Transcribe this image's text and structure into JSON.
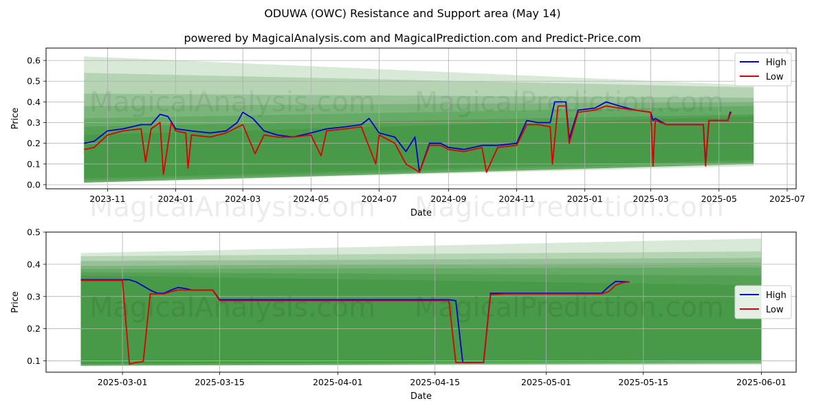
{
  "header": {
    "title": "ODUWA (OWC) Resistance and Support area (May 14)",
    "subtitle": "powered by MagicalAnalysis.com and MagicalPrediction.com and Predict-Price.com"
  },
  "watermarks": [
    "MagicalAnalysis.com",
    "MagicalPrediction.com"
  ],
  "colors": {
    "high": "#0000cc",
    "low": "#dd0000",
    "band": "#2e8b2e",
    "grid": "#b0b0b0"
  },
  "chart_data": [
    {
      "type": "line",
      "xlabel": "Date",
      "ylabel": "Price",
      "ylim": [
        -0.02,
        0.66
      ],
      "xlim": [
        "2023-09-07",
        "2025-07-09"
      ],
      "yticks": [
        0.0,
        0.1,
        0.2,
        0.3,
        0.4,
        0.5,
        0.6
      ],
      "ytick_labels": [
        "0.0",
        "0.1",
        "0.2",
        "0.3",
        "0.4",
        "0.5",
        "0.6"
      ],
      "xticks": [
        "2023-11-01",
        "2024-01-01",
        "2024-03-01",
        "2024-05-01",
        "2024-07-01",
        "2024-09-01",
        "2024-11-01",
        "2025-01-01",
        "2025-03-01",
        "2025-05-01",
        "2025-07-01"
      ],
      "xtick_labels": [
        "2023-11",
        "2024-01",
        "2024-03",
        "2024-05",
        "2024-07",
        "2024-09",
        "2024-11",
        "2025-01",
        "2025-03",
        "2025-05",
        "2025-07"
      ],
      "grid": true,
      "legend_position": "top-right",
      "legend": [
        "High",
        "Low"
      ],
      "bands": {
        "x": [
          "2023-10-11",
          "2025-06-01"
        ],
        "layers": [
          {
            "start": [
              0.01,
              0.62
            ],
            "end": [
              0.09,
              0.48
            ]
          },
          {
            "start": [
              0.01,
              0.54
            ],
            "end": [
              0.1,
              0.47
            ]
          },
          {
            "start": [
              0.01,
              0.44
            ],
            "end": [
              0.1,
              0.42
            ]
          },
          {
            "start": [
              0.01,
              0.38
            ],
            "end": [
              0.1,
              0.4
            ]
          },
          {
            "start": [
              0.01,
              0.32
            ],
            "end": [
              0.1,
              0.38
            ]
          },
          {
            "start": [
              0.02,
              0.28
            ],
            "end": [
              0.11,
              0.34
            ]
          },
          {
            "start": [
              0.03,
              0.24
            ],
            "end": [
              0.12,
              0.33
            ]
          }
        ]
      },
      "series": [
        {
          "name": "High",
          "points": [
            [
              "2023-10-11",
              0.2
            ],
            [
              "2023-10-20",
              0.21
            ],
            [
              "2023-11-01",
              0.26
            ],
            [
              "2023-11-15",
              0.27
            ],
            [
              "2023-12-01",
              0.29
            ],
            [
              "2023-12-10",
              0.29
            ],
            [
              "2023-12-18",
              0.34
            ],
            [
              "2023-12-25",
              0.33
            ],
            [
              "2024-01-01",
              0.27
            ],
            [
              "2024-01-15",
              0.26
            ],
            [
              "2024-02-01",
              0.25
            ],
            [
              "2024-02-15",
              0.26
            ],
            [
              "2024-02-25",
              0.3
            ],
            [
              "2024-03-01",
              0.35
            ],
            [
              "2024-03-10",
              0.32
            ],
            [
              "2024-03-20",
              0.26
            ],
            [
              "2024-04-01",
              0.24
            ],
            [
              "2024-04-15",
              0.23
            ],
            [
              "2024-05-01",
              0.25
            ],
            [
              "2024-05-15",
              0.27
            ],
            [
              "2024-06-01",
              0.28
            ],
            [
              "2024-06-15",
              0.29
            ],
            [
              "2024-06-22",
              0.32
            ],
            [
              "2024-07-01",
              0.25
            ],
            [
              "2024-07-15",
              0.23
            ],
            [
              "2024-07-25",
              0.16
            ],
            [
              "2024-08-02",
              0.23
            ],
            [
              "2024-08-06",
              0.06
            ],
            [
              "2024-08-15",
              0.2
            ],
            [
              "2024-08-25",
              0.2
            ],
            [
              "2024-09-01",
              0.18
            ],
            [
              "2024-09-15",
              0.17
            ],
            [
              "2024-10-01",
              0.19
            ],
            [
              "2024-10-15",
              0.19
            ],
            [
              "2024-11-01",
              0.2
            ],
            [
              "2024-11-10",
              0.31
            ],
            [
              "2024-11-20",
              0.3
            ],
            [
              "2024-12-01",
              0.3
            ],
            [
              "2024-12-05",
              0.4
            ],
            [
              "2024-12-15",
              0.4
            ],
            [
              "2024-12-18",
              0.22
            ],
            [
              "2024-12-26",
              0.36
            ],
            [
              "2025-01-10",
              0.37
            ],
            [
              "2025-01-20",
              0.4
            ],
            [
              "2025-02-01",
              0.38
            ],
            [
              "2025-02-15",
              0.36
            ],
            [
              "2025-03-01",
              0.35
            ],
            [
              "2025-03-03",
              0.31
            ],
            [
              "2025-03-05",
              0.32
            ],
            [
              "2025-03-15",
              0.29
            ],
            [
              "2025-04-17",
              0.29
            ],
            [
              "2025-04-19",
              0.1
            ],
            [
              "2025-04-22",
              0.31
            ],
            [
              "2025-05-09",
              0.31
            ],
            [
              "2025-05-11",
              0.35
            ],
            [
              "2025-05-12",
              0.35
            ]
          ]
        },
        {
          "name": "Low",
          "points": [
            [
              "2023-10-11",
              0.17
            ],
            [
              "2023-10-20",
              0.18
            ],
            [
              "2023-11-01",
              0.24
            ],
            [
              "2023-11-15",
              0.26
            ],
            [
              "2023-12-01",
              0.27
            ],
            [
              "2023-12-05",
              0.11
            ],
            [
              "2023-12-10",
              0.27
            ],
            [
              "2023-12-18",
              0.3
            ],
            [
              "2023-12-21",
              0.05
            ],
            [
              "2023-12-28",
              0.3
            ],
            [
              "2024-01-01",
              0.26
            ],
            [
              "2024-01-10",
              0.25
            ],
            [
              "2024-01-12",
              0.08
            ],
            [
              "2024-01-15",
              0.24
            ],
            [
              "2024-02-01",
              0.23
            ],
            [
              "2024-02-15",
              0.25
            ],
            [
              "2024-03-01",
              0.29
            ],
            [
              "2024-03-12",
              0.15
            ],
            [
              "2024-03-20",
              0.24
            ],
            [
              "2024-04-01",
              0.23
            ],
            [
              "2024-04-15",
              0.23
            ],
            [
              "2024-05-01",
              0.24
            ],
            [
              "2024-05-10",
              0.14
            ],
            [
              "2024-05-15",
              0.26
            ],
            [
              "2024-06-01",
              0.27
            ],
            [
              "2024-06-15",
              0.28
            ],
            [
              "2024-06-28",
              0.1
            ],
            [
              "2024-07-01",
              0.24
            ],
            [
              "2024-07-15",
              0.2
            ],
            [
              "2024-07-25",
              0.1
            ],
            [
              "2024-08-06",
              0.06
            ],
            [
              "2024-08-15",
              0.19
            ],
            [
              "2024-08-25",
              0.19
            ],
            [
              "2024-09-01",
              0.17
            ],
            [
              "2024-09-15",
              0.16
            ],
            [
              "2024-10-01",
              0.18
            ],
            [
              "2024-10-05",
              0.06
            ],
            [
              "2024-10-15",
              0.18
            ],
            [
              "2024-11-01",
              0.19
            ],
            [
              "2024-11-10",
              0.29
            ],
            [
              "2024-11-20",
              0.29
            ],
            [
              "2024-12-01",
              0.28
            ],
            [
              "2024-12-03",
              0.1
            ],
            [
              "2024-12-08",
              0.38
            ],
            [
              "2024-12-15",
              0.38
            ],
            [
              "2024-12-18",
              0.2
            ],
            [
              "2024-12-26",
              0.35
            ],
            [
              "2025-01-10",
              0.36
            ],
            [
              "2025-01-20",
              0.38
            ],
            [
              "2025-02-01",
              0.37
            ],
            [
              "2025-02-15",
              0.36
            ],
            [
              "2025-03-01",
              0.35
            ],
            [
              "2025-03-03",
              0.09
            ],
            [
              "2025-03-05",
              0.31
            ],
            [
              "2025-03-15",
              0.29
            ],
            [
              "2025-04-17",
              0.29
            ],
            [
              "2025-04-19",
              0.09
            ],
            [
              "2025-04-22",
              0.31
            ],
            [
              "2025-05-09",
              0.31
            ],
            [
              "2025-05-11",
              0.34
            ],
            [
              "2025-05-12",
              0.35
            ]
          ]
        }
      ]
    },
    {
      "type": "line",
      "xlabel": "Date",
      "ylabel": "Price",
      "ylim": [
        0.065,
        0.5
      ],
      "xlim": [
        "2025-02-18",
        "2025-06-06"
      ],
      "yticks": [
        0.1,
        0.2,
        0.3,
        0.4,
        0.5
      ],
      "ytick_labels": [
        "0.1",
        "0.2",
        "0.3",
        "0.4",
        "0.5"
      ],
      "xticks": [
        "2025-03-01",
        "2025-03-15",
        "2025-04-01",
        "2025-04-15",
        "2025-05-01",
        "2025-05-15",
        "2025-06-01"
      ],
      "xtick_labels": [
        "2025-03-01",
        "2025-03-15",
        "2025-04-01",
        "2025-04-15",
        "2025-05-01",
        "2025-05-15",
        "2025-06-01"
      ],
      "grid": true,
      "legend_position": "center-right",
      "legend": [
        "High",
        "Low"
      ],
      "bands": {
        "x": [
          "2025-02-23",
          "2025-06-01"
        ],
        "layers": [
          {
            "start": [
              0.085,
              0.435
            ],
            "end": [
              0.09,
              0.48
            ]
          },
          {
            "start": [
              0.085,
              0.425
            ],
            "end": [
              0.09,
              0.44
            ]
          },
          {
            "start": [
              0.085,
              0.41
            ],
            "end": [
              0.09,
              0.42
            ]
          },
          {
            "start": [
              0.085,
              0.395
            ],
            "end": [
              0.095,
              0.405
            ]
          },
          {
            "start": [
              0.085,
              0.385
            ],
            "end": [
              0.095,
              0.39
            ]
          },
          {
            "start": [
              0.09,
              0.375
            ],
            "end": [
              0.1,
              0.365
            ]
          },
          {
            "start": [
              0.09,
              0.365
            ],
            "end": [
              0.1,
              0.335
            ]
          }
        ]
      },
      "series": [
        {
          "name": "High",
          "points": [
            [
              "2025-02-23",
              0.352
            ],
            [
              "2025-03-02",
              0.352
            ],
            [
              "2025-03-03",
              0.345
            ],
            [
              "2025-03-05",
              0.32
            ],
            [
              "2025-03-06",
              0.31
            ],
            [
              "2025-03-07",
              0.31
            ],
            [
              "2025-03-08",
              0.32
            ],
            [
              "2025-03-09",
              0.328
            ],
            [
              "2025-03-10",
              0.325
            ],
            [
              "2025-03-11",
              0.32
            ],
            [
              "2025-03-14",
              0.32
            ],
            [
              "2025-03-15",
              0.29
            ],
            [
              "2025-04-17",
              0.29
            ],
            [
              "2025-04-18",
              0.287
            ],
            [
              "2025-04-19",
              0.095
            ],
            [
              "2025-04-22",
              0.095
            ],
            [
              "2025-04-23",
              0.31
            ],
            [
              "2025-04-25",
              0.31
            ],
            [
              "2025-05-09",
              0.31
            ],
            [
              "2025-05-10",
              0.33
            ],
            [
              "2025-05-11",
              0.347
            ],
            [
              "2025-05-13",
              0.345
            ]
          ]
        },
        {
          "name": "Low",
          "points": [
            [
              "2025-02-23",
              0.35
            ],
            [
              "2025-03-01",
              0.35
            ],
            [
              "2025-03-02",
              0.09
            ],
            [
              "2025-03-03",
              0.095
            ],
            [
              "2025-03-04",
              0.098
            ],
            [
              "2025-03-05",
              0.308
            ],
            [
              "2025-03-07",
              0.308
            ],
            [
              "2025-03-08",
              0.315
            ],
            [
              "2025-03-09",
              0.32
            ],
            [
              "2025-03-14",
              0.32
            ],
            [
              "2025-03-15",
              0.287
            ],
            [
              "2025-04-17",
              0.287
            ],
            [
              "2025-04-18",
              0.095
            ],
            [
              "2025-04-22",
              0.095
            ],
            [
              "2025-04-23",
              0.305
            ],
            [
              "2025-04-25",
              0.308
            ],
            [
              "2025-05-09",
              0.308
            ],
            [
              "2025-05-10",
              0.315
            ],
            [
              "2025-05-11",
              0.335
            ],
            [
              "2025-05-12",
              0.343
            ],
            [
              "2025-05-13",
              0.345
            ]
          ]
        }
      ]
    }
  ]
}
